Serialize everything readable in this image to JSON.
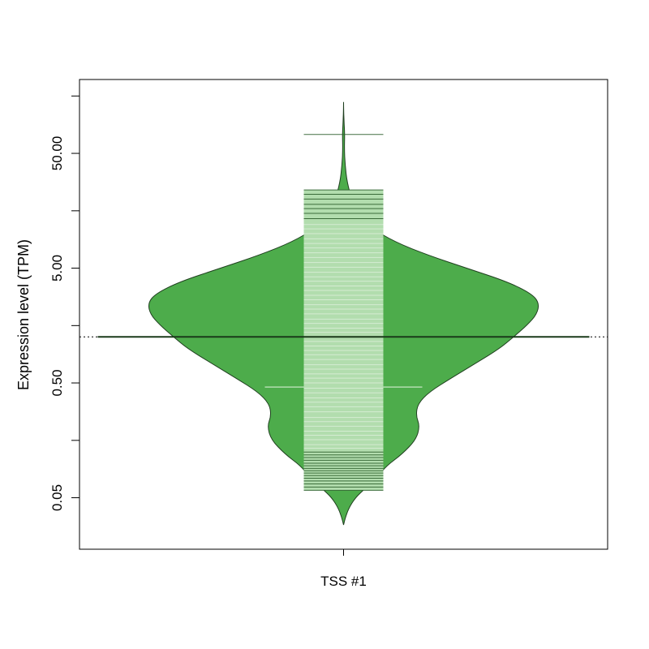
{
  "chart_data": {
    "type": "beanplot",
    "title": "",
    "xlabel": "",
    "ylabel": "Expression level (TPM)",
    "y_scale": "log10",
    "ylim": [
      0.0178,
      220
    ],
    "yticks": [
      0.05,
      0.5,
      5.0,
      50.0
    ],
    "ytick_labels": [
      "0.05",
      "0.50",
      "5.00",
      "50.00"
    ],
    "yminor_ticks": [
      0.158,
      1.58,
      15.8,
      158
    ],
    "categories": [
      "TSS #1"
    ],
    "reference_line": {
      "value": 1.26,
      "style": "dotted"
    },
    "beans": [
      {
        "category": "TSS #1",
        "fill_color": "#4DAC4B",
        "outline_color": "#1f3f1f",
        "strip_color": "#B2DDAE",
        "strip_line_color": "#2e5f2e",
        "mean_line_color": "#1a3a1a",
        "y_min": 0.029,
        "y_max": 140,
        "mean": 1.26,
        "highlight_line_value": 0.46,
        "density_profile": [
          {
            "y": 0.029,
            "w": 0.0
          },
          {
            "y": 0.033,
            "w": 0.008
          },
          {
            "y": 0.04,
            "w": 0.025
          },
          {
            "y": 0.05,
            "w": 0.06
          },
          {
            "y": 0.06,
            "w": 0.11
          },
          {
            "y": 0.075,
            "w": 0.17
          },
          {
            "y": 0.095,
            "w": 0.22
          },
          {
            "y": 0.12,
            "w": 0.3
          },
          {
            "y": 0.16,
            "w": 0.37
          },
          {
            "y": 0.21,
            "w": 0.39
          },
          {
            "y": 0.26,
            "w": 0.37
          },
          {
            "y": 0.33,
            "w": 0.38
          },
          {
            "y": 0.42,
            "w": 0.44
          },
          {
            "y": 0.55,
            "w": 0.55
          },
          {
            "y": 0.75,
            "w": 0.68
          },
          {
            "y": 1.0,
            "w": 0.8
          },
          {
            "y": 1.26,
            "w": 0.87
          },
          {
            "y": 1.6,
            "w": 0.94
          },
          {
            "y": 2.0,
            "w": 0.99
          },
          {
            "y": 2.5,
            "w": 1.0
          },
          {
            "y": 3.0,
            "w": 0.96
          },
          {
            "y": 3.8,
            "w": 0.84
          },
          {
            "y": 5.0,
            "w": 0.63
          },
          {
            "y": 6.5,
            "w": 0.43
          },
          {
            "y": 8.5,
            "w": 0.26
          },
          {
            "y": 11,
            "w": 0.15
          },
          {
            "y": 14,
            "w": 0.085
          },
          {
            "y": 19,
            "w": 0.045
          },
          {
            "y": 28,
            "w": 0.018
          },
          {
            "y": 40,
            "w": 0.008
          },
          {
            "y": 55,
            "w": 0.004
          },
          {
            "y": 72,
            "w": 0.006
          },
          {
            "y": 90,
            "w": 0.003
          },
          {
            "y": 110,
            "w": 0.001
          },
          {
            "y": 140,
            "w": 0.0
          }
        ],
        "observations": [
          0.058,
          0.062,
          0.066,
          0.07,
          0.074,
          0.078,
          0.082,
          0.086,
          0.09,
          0.095,
          0.1,
          0.106,
          0.112,
          0.118,
          0.125,
          0.135,
          0.145,
          0.16,
          0.175,
          0.19,
          0.21,
          0.23,
          0.25,
          0.28,
          0.31,
          0.34,
          0.37,
          0.41,
          0.45,
          0.5,
          0.55,
          0.6,
          0.66,
          0.72,
          0.8,
          0.88,
          0.96,
          1.05,
          1.15,
          1.26,
          1.38,
          1.5,
          1.65,
          1.8,
          2.0,
          2.2,
          2.4,
          2.65,
          2.9,
          3.2,
          3.5,
          3.85,
          4.2,
          4.6,
          5.1,
          5.6,
          6.2,
          6.8,
          7.5,
          8.2,
          9.0,
          10.0,
          11.0,
          12.0,
          13.5,
          15.0,
          16.5,
          18.0,
          20.0,
          22.0,
          24.0,
          73.0
        ]
      }
    ]
  }
}
